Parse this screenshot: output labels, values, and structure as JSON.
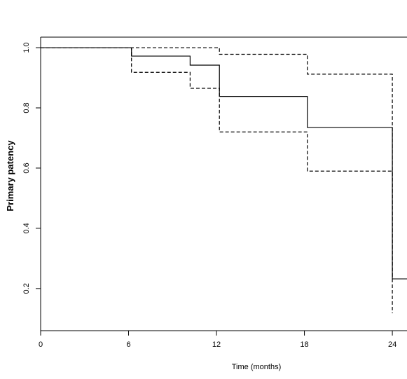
{
  "chart_data": {
    "type": "line",
    "step": true,
    "title": "",
    "xlabel": "Time (months)",
    "ylabel": "Primary patency",
    "xlim": [
      0,
      25
    ],
    "ylim": [
      0.06,
      1.035
    ],
    "x_ticks": [
      0,
      6,
      12,
      18,
      24
    ],
    "x_tick_labels": [
      "0",
      "6",
      "12",
      "18",
      "24"
    ],
    "y_ticks": [
      0.2,
      0.4,
      0.6,
      0.8,
      1.0
    ],
    "y_tick_labels": [
      "0.2",
      "0.4",
      "0.6",
      "0.8",
      "1.0"
    ],
    "grid": false,
    "series": [
      {
        "style": "solid",
        "color": "#000000",
        "x": [
          0,
          6.2,
          10.2,
          12.2,
          18.2,
          24
        ],
        "y": [
          1.0,
          0.972,
          0.942,
          0.838,
          0.735,
          0.232
        ],
        "x_end": 25
      },
      {
        "style": "dashed",
        "color": "#000000",
        "x": [
          0,
          6.2,
          10.2,
          12.2,
          18.2,
          24
        ],
        "y": [
          1.0,
          0.918,
          0.865,
          0.72,
          0.59,
          0.118
        ],
        "x_end": 24
      },
      {
        "style": "dashed",
        "color": "#000000",
        "x": [
          0,
          12.2,
          18.2,
          24
        ],
        "y": [
          1.0,
          0.978,
          0.912,
          0.232
        ],
        "x_end": 24
      }
    ]
  }
}
